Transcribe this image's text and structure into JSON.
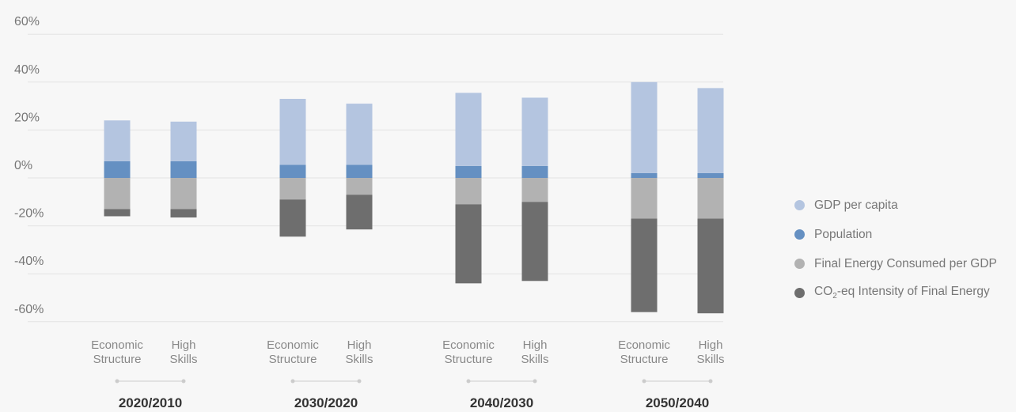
{
  "colors": {
    "gdp": "#b4c5e0",
    "population": "#6590c2",
    "energy_per_gdp": "#b2b2b2",
    "co2_intensity": "#6e6e6e",
    "grid": "#e3e3e3",
    "connector": "#cccccc"
  },
  "legend": [
    {
      "key": "gdp",
      "label": "GDP per capita",
      "label_sub": "",
      "label_after": ""
    },
    {
      "key": "population",
      "label": "Population",
      "label_sub": "",
      "label_after": ""
    },
    {
      "key": "energy_per_gdp",
      "label": "Final Energy Consumed per GDP",
      "label_sub": "",
      "label_after": ""
    },
    {
      "key": "co2_intensity",
      "label": "CO",
      "label_sub": "2",
      "label_after": "-eq Intensity of Final Energy"
    }
  ],
  "chart_data": {
    "type": "bar",
    "stacked": true,
    "y_tick_labels": [
      "60%",
      "40%",
      "20%",
      "0%",
      "-20%",
      "-40%",
      "-60%"
    ],
    "y_ticks": [
      60,
      40,
      20,
      0,
      -20,
      -40,
      -60
    ],
    "ylim": [
      -60,
      60
    ],
    "grid": true,
    "legend_position": "right",
    "groups": [
      {
        "label": "2020/2010",
        "categories": [
          [
            "Economic",
            "Structure"
          ],
          [
            "High",
            "Skills"
          ]
        ]
      },
      {
        "label": "2030/2020",
        "categories": [
          [
            "Economic",
            "Structure"
          ],
          [
            "High",
            "Skills"
          ]
        ]
      },
      {
        "label": "2040/2030",
        "categories": [
          [
            "Economic",
            "Structure"
          ],
          [
            "High",
            "Skills"
          ]
        ]
      },
      {
        "label": "2050/2040",
        "categories": [
          [
            "Economic",
            "Structure"
          ],
          [
            "High",
            "Skills"
          ]
        ]
      }
    ],
    "series": [
      {
        "name": "GDP per capita",
        "key": "gdp",
        "values": [
          17,
          16.5,
          27.5,
          25.5,
          30.5,
          28.5,
          38,
          35.5
        ]
      },
      {
        "name": "Population",
        "key": "population",
        "values": [
          7,
          7,
          5.5,
          5.5,
          5,
          5,
          2,
          2
        ]
      },
      {
        "name": "Final Energy Consumed per GDP",
        "key": "energy_per_gdp",
        "values": [
          -13,
          -13,
          -9,
          -7,
          -11,
          -10,
          -17,
          -17
        ]
      },
      {
        "name": "CO2-eq Intensity of Final Energy",
        "key": "co2_intensity",
        "values": [
          -3,
          -3.5,
          -15.5,
          -14.5,
          -33,
          -33,
          -39,
          -39.5
        ]
      }
    ]
  }
}
